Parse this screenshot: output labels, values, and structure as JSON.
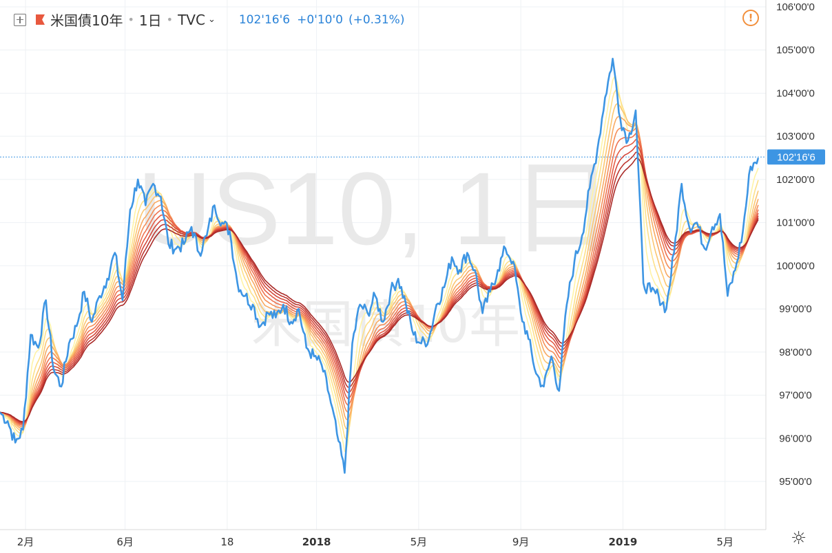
{
  "header": {
    "symbol": "米国債10年",
    "interval": "1日",
    "source": "TVC",
    "price": "102'16'6",
    "change": "+0'10'0",
    "change_pct": "(+0.31%)"
  },
  "watermark": {
    "main": "US10, 1日",
    "sub": "米国債10年"
  },
  "price_tag": {
    "label": "102'16'6",
    "value": 102.52
  },
  "colors": {
    "price_line": "#3d95e3",
    "ribbon": [
      "#fff3a6",
      "#fde089",
      "#fbc672",
      "#f8a962",
      "#f58e58",
      "#ee7350",
      "#e45b45",
      "#d4473b",
      "#bf3731",
      "#a92a28"
    ]
  },
  "chart_data": {
    "type": "line",
    "ylim": [
      94,
      106
    ],
    "y_tick_labels": [
      "106'00'0",
      "105'00'0",
      "104'00'0",
      "103'00'0",
      "102'00'0",
      "101'00'0",
      "100'00'0",
      "99'00'0",
      "98'00'0",
      "97'00'0",
      "96'00'0",
      "95'00'0"
    ],
    "y_tick_values": [
      106,
      105,
      104,
      103,
      102,
      101,
      100,
      99,
      98,
      97,
      96,
      95
    ],
    "x_tick_labels": [
      "2月",
      "6月",
      "18",
      "2018",
      "5月",
      "9月",
      "2019",
      "5月"
    ],
    "x_tick_values": [
      1.6,
      5.5,
      9.5,
      13.0,
      17.0,
      21.0,
      25.0,
      29.0
    ],
    "xlim": [
      0.6,
      30.6
    ],
    "series": [
      {
        "x": [
          0.6,
          0.9,
          1.2,
          1.5,
          1.8,
          2.1,
          2.4,
          2.7,
          3.0,
          3.3,
          3.6,
          3.9,
          4.2,
          4.5,
          4.8,
          5.1,
          5.4,
          5.7,
          6.0,
          6.3,
          6.6,
          6.9,
          7.2,
          7.5,
          7.8,
          8.1,
          8.4,
          8.7,
          9.0,
          9.3,
          9.6,
          9.9,
          10.2,
          10.5,
          10.8,
          11.1,
          11.4,
          11.7,
          12.0,
          12.3,
          12.6,
          12.9,
          13.2,
          13.5,
          13.8,
          14.1,
          14.4,
          14.7,
          15.0,
          15.3,
          15.6,
          15.9,
          16.2,
          16.5,
          16.8,
          17.1,
          17.4,
          17.7,
          18.0,
          18.3,
          18.6,
          18.9,
          19.2,
          19.5,
          19.8,
          20.1,
          20.4,
          20.7,
          21.0,
          21.3,
          21.6,
          21.9,
          22.2,
          22.5,
          22.8,
          23.1,
          23.4,
          23.7,
          24.0,
          24.3,
          24.6,
          24.9,
          25.2,
          25.5,
          25.8,
          26.1,
          26.4,
          26.7,
          27.0,
          27.3,
          27.6,
          27.9,
          28.2,
          28.5,
          28.8,
          29.1,
          29.4,
          29.7,
          30.0,
          30.3
        ],
        "y": [
          96.6,
          96.4,
          95.9,
          96.2,
          98.4,
          98.1,
          99.2,
          97.6,
          97.2,
          98.2,
          98.6,
          99.4,
          98.7,
          99.3,
          99.7,
          100.3,
          99.2,
          101.3,
          102.0,
          101.4,
          101.9,
          101.6,
          100.5,
          100.4,
          100.5,
          100.9,
          100.3,
          100.7,
          101.4,
          101.0,
          100.8,
          99.6,
          99.3,
          99.1,
          98.6,
          98.9,
          98.8,
          99.1,
          98.7,
          99.0,
          98.1,
          97.9,
          97.7,
          97.0,
          96.1,
          95.2,
          98.2,
          99.1,
          98.9,
          99.3,
          98.7,
          99.4,
          99.7,
          99.1,
          98.4,
          98.2,
          98.3,
          99.1,
          99.5,
          100.2,
          99.9,
          100.3,
          99.9,
          98.9,
          99.4,
          99.9,
          100.4,
          100.1,
          98.9,
          98.3,
          97.5,
          97.2,
          97.9,
          97.1,
          99.1,
          100.1,
          100.7,
          101.8,
          102.7,
          103.9,
          104.8,
          103.4,
          102.9,
          103.6,
          99.6,
          99.4,
          99.3,
          99.0,
          100.3,
          101.9,
          100.9,
          101.0,
          100.4,
          100.9,
          101.2,
          99.3,
          99.9,
          100.8,
          102.3,
          102.5
        ]
      }
    ]
  }
}
